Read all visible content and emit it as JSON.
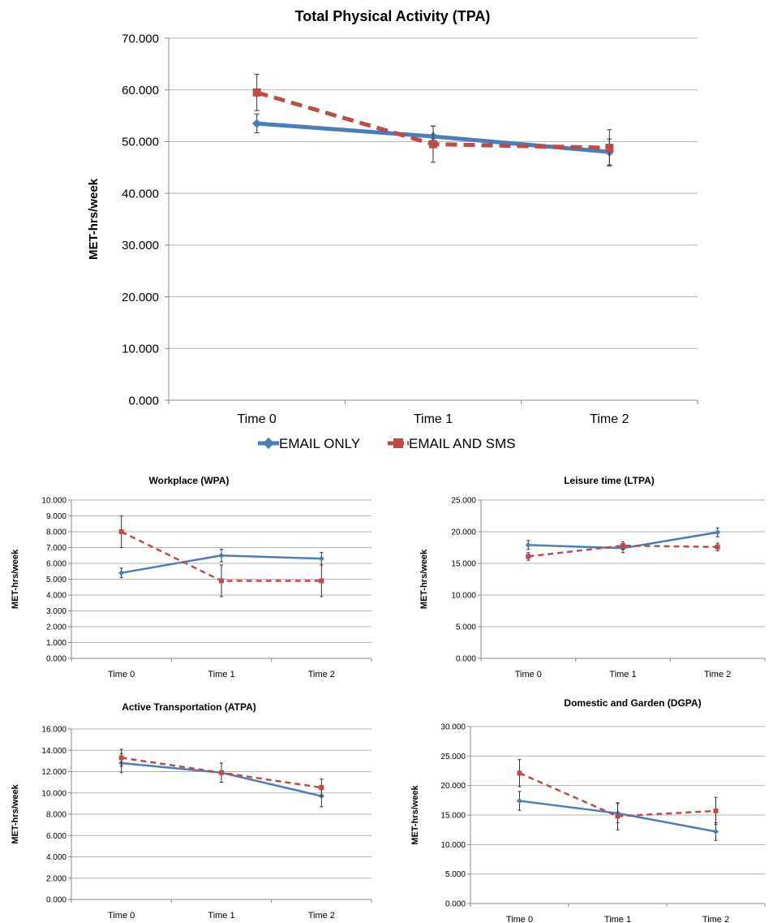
{
  "colors": {
    "email_only": "#4a7ebb",
    "email_sms": "#be4b48",
    "grid": "#b3b3b3",
    "axis": "#888888"
  },
  "legend": {
    "email_only": "EMAIL ONLY",
    "email_sms": "EMAIL AND SMS"
  },
  "chart_data": [
    {
      "id": "tpa",
      "type": "line",
      "title": "Total Physical Activity (TPA)",
      "ylabel": "MET-hrs/week",
      "categories": [
        "Time 0",
        "Time 1",
        "Time 2"
      ],
      "ylim": [
        0,
        70
      ],
      "yticks": [
        "0.000",
        "10.000",
        "20.000",
        "30.000",
        "40.000",
        "50.000",
        "60.000",
        "70.000"
      ],
      "ytick_values": [
        0,
        10,
        20,
        30,
        40,
        50,
        60,
        70
      ],
      "series": [
        {
          "name": "EMAIL ONLY",
          "values": [
            53.5,
            51.0,
            48.0
          ],
          "err": [
            1.8,
            2.0,
            2.5
          ]
        },
        {
          "name": "EMAIL AND SMS",
          "values": [
            59.5,
            49.5,
            48.8
          ],
          "err": [
            3.5,
            3.5,
            3.5
          ]
        }
      ]
    },
    {
      "id": "wpa",
      "type": "line",
      "title": "Workplace (WPA)",
      "ylabel": "MET-hrs/week",
      "categories": [
        "Time 0",
        "Time 1",
        "Time 2"
      ],
      "ylim": [
        0,
        10
      ],
      "yticks": [
        "0.000",
        "1.000",
        "2.000",
        "3.000",
        "4.000",
        "5.000",
        "6.000",
        "7.000",
        "8.000",
        "9.000",
        "10.000"
      ],
      "ytick_values": [
        0,
        1,
        2,
        3,
        4,
        5,
        6,
        7,
        8,
        9,
        10
      ],
      "series": [
        {
          "name": "EMAIL ONLY",
          "values": [
            5.4,
            6.5,
            6.3
          ],
          "err": [
            0.3,
            0.4,
            0.4
          ]
        },
        {
          "name": "EMAIL AND SMS",
          "values": [
            8.0,
            4.9,
            4.9
          ],
          "err": [
            1.0,
            1.0,
            1.0
          ]
        }
      ]
    },
    {
      "id": "ltpa",
      "type": "line",
      "title": "Leisure time (LTPA)",
      "ylabel": "MET-hrs/week",
      "categories": [
        "Time 0",
        "Time 1",
        "Time 2"
      ],
      "ylim": [
        0,
        25
      ],
      "yticks": [
        "0.000",
        "5.000",
        "10.000",
        "15.000",
        "20.000",
        "25.000"
      ],
      "ytick_values": [
        0,
        5,
        10,
        15,
        20,
        25
      ],
      "series": [
        {
          "name": "EMAIL ONLY",
          "values": [
            17.9,
            17.4,
            19.9
          ],
          "err": [
            0.7,
            0.7,
            0.7
          ]
        },
        {
          "name": "EMAIL AND SMS",
          "values": [
            16.1,
            17.8,
            17.6
          ],
          "err": [
            0.6,
            0.6,
            0.6
          ]
        }
      ]
    },
    {
      "id": "atpa",
      "type": "line",
      "title": "Active Transportation (ATPA)",
      "ylabel": "MET-hrs/week",
      "categories": [
        "Time 0",
        "Time 1",
        "Time 2"
      ],
      "ylim": [
        0,
        16
      ],
      "yticks": [
        "0.000",
        "2.000",
        "4.000",
        "6.000",
        "8.000",
        "10.000",
        "12.000",
        "14.000",
        "16.000"
      ],
      "ytick_values": [
        0,
        2,
        4,
        6,
        8,
        10,
        12,
        14,
        16
      ],
      "series": [
        {
          "name": "EMAIL ONLY",
          "values": [
            12.8,
            11.9,
            9.7
          ],
          "err": [
            0.9,
            0.9,
            1.0
          ]
        },
        {
          "name": "EMAIL AND SMS",
          "values": [
            13.3,
            11.9,
            10.5
          ],
          "err": [
            0.8,
            0.9,
            0.8
          ]
        }
      ]
    },
    {
      "id": "dgpa",
      "type": "line",
      "title": "Domestic and Garden (DGPA)",
      "ylabel": "MET-hrs/week",
      "categories": [
        "Time 0",
        "Time 1",
        "Time 2"
      ],
      "ylim": [
        0,
        30
      ],
      "yticks": [
        "0.000",
        "5.000",
        "10.000",
        "15.000",
        "20.000",
        "25.000",
        "30.000"
      ],
      "ytick_values": [
        0,
        5,
        10,
        15,
        20,
        25,
        30
      ],
      "series": [
        {
          "name": "EMAIL ONLY",
          "values": [
            17.4,
            15.3,
            12.2
          ],
          "err": [
            1.6,
            1.6,
            1.5
          ]
        },
        {
          "name": "EMAIL AND SMS",
          "values": [
            22.1,
            14.8,
            15.7
          ],
          "err": [
            2.3,
            2.3,
            2.3
          ]
        }
      ]
    }
  ]
}
